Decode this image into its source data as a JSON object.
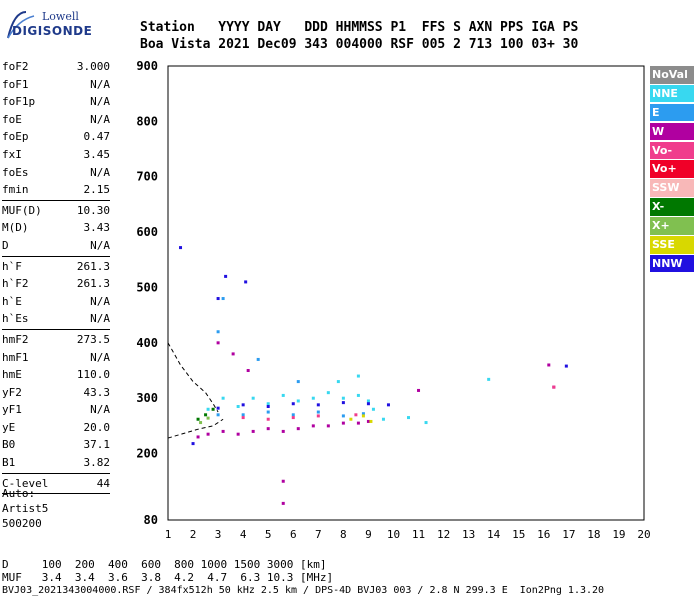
{
  "logo": {
    "top": "Lowell",
    "bottom": "DIGISONDE"
  },
  "header": {
    "row1": "Station   YYYY DAY   DDD HHMMSS P1  FFS S AXN PPS IGA PS",
    "row2": "Boa Vista 2021 Dec09 343 004000 RSF 005 2 713 100 03+ 30"
  },
  "params": [
    {
      "name": "foF2",
      "value": "3.000"
    },
    {
      "name": "foF1",
      "value": "N/A"
    },
    {
      "name": "foF1p",
      "value": "N/A"
    },
    {
      "name": "foE",
      "value": "N/A"
    },
    {
      "name": "foEp",
      "value": "0.47"
    },
    {
      "name": "fxI",
      "value": "3.45"
    },
    {
      "name": "foEs",
      "value": "N/A"
    },
    {
      "name": "fmin",
      "value": "2.15"
    },
    {
      "sep": true
    },
    {
      "name": "MUF(D)",
      "value": "10.30"
    },
    {
      "name": "M(D)",
      "value": "3.43"
    },
    {
      "name": "D",
      "value": "N/A"
    },
    {
      "sep": true
    },
    {
      "name": "h`F",
      "value": "261.3"
    },
    {
      "name": "h`F2",
      "value": "261.3"
    },
    {
      "name": "h`E",
      "value": "N/A"
    },
    {
      "name": "h`Es",
      "value": "N/A"
    },
    {
      "sep": true
    },
    {
      "name": "hmF2",
      "value": "273.5"
    },
    {
      "name": "hmF1",
      "value": "N/A"
    },
    {
      "name": "hmE",
      "value": "110.0"
    },
    {
      "name": "yF2",
      "value": "43.3"
    },
    {
      "name": "yF1",
      "value": "N/A"
    },
    {
      "name": "yE",
      "value": "20.0"
    },
    {
      "name": "B0",
      "value": "37.1"
    },
    {
      "name": "B1",
      "value": "3.82"
    },
    {
      "sep": true
    },
    {
      "name": "C-level",
      "value": "44"
    },
    {
      "sep": true
    }
  ],
  "auto": {
    "line1": "Auto:",
    "line2": "Artist5",
    "line3": "500200"
  },
  "legend": [
    {
      "label": "NoVal",
      "color": "#8c8c8c"
    },
    {
      "label": "NNE",
      "color": "#38d8f0"
    },
    {
      "label": "E",
      "color": "#2c9cf0"
    },
    {
      "label": "W",
      "color": "#b000a0"
    },
    {
      "label": "Vo-",
      "color": "#f03c8c"
    },
    {
      "label": "Vo+",
      "color": "#f00028"
    },
    {
      "label": "SSW",
      "color": "#f8b8b8"
    },
    {
      "label": "X-",
      "color": "#007800"
    },
    {
      "label": "X+",
      "color": "#80c050"
    },
    {
      "label": "SSE",
      "color": "#d8d800"
    },
    {
      "label": "NNW",
      "color": "#2010e0"
    }
  ],
  "footer": {
    "d_line": "D     100  200  400  600  800 1000 1500 3000 [km]",
    "muf_line": "MUF   3.4  3.4  3.6  3.8  4.2  4.7  6.3 10.3 [MHz]",
    "file_line": "BVJ03_2021343004000.RSF / 384fx512h 50 kHz 2.5 km / DPS-4D BVJ03 003 / 2.8 N 299.3 E  Ion2Png 1.3.20"
  },
  "chart_data": {
    "type": "scatter",
    "xlabel": "",
    "ylabel": "",
    "x_ticks": [
      "1",
      "2",
      "3",
      "4",
      "5",
      "6",
      "7",
      "8",
      "9",
      "10",
      "11",
      "12",
      "13",
      "14",
      "15",
      "16",
      "17",
      "18",
      "19",
      "20"
    ],
    "y_ticks": [
      "80",
      "200",
      "300",
      "400",
      "500",
      "600",
      "700",
      "800",
      "900"
    ],
    "xlim": [
      1,
      20
    ],
    "ylim": [
      80,
      900
    ],
    "grid": true,
    "legend_position": "right",
    "series": [
      {
        "name": "NNE",
        "color": "#38d8f0",
        "points": [
          [
            2.6,
            280
          ],
          [
            3.2,
            300
          ],
          [
            3.8,
            285
          ],
          [
            4.4,
            300
          ],
          [
            5.0,
            290
          ],
          [
            5.6,
            305
          ],
          [
            6.2,
            295
          ],
          [
            6.8,
            300
          ],
          [
            7.4,
            310
          ],
          [
            8.0,
            300
          ],
          [
            8.6,
            305
          ],
          [
            9.0,
            295
          ],
          [
            7.8,
            330
          ],
          [
            8.6,
            340
          ],
          [
            9.2,
            280
          ],
          [
            9.6,
            262
          ],
          [
            10.6,
            265
          ],
          [
            11.3,
            256
          ],
          [
            13.8,
            334
          ]
        ]
      },
      {
        "name": "E",
        "color": "#2c9cf0",
        "points": [
          [
            3.0,
            270
          ],
          [
            4.0,
            270
          ],
          [
            5.0,
            275
          ],
          [
            6.0,
            270
          ],
          [
            7.0,
            275
          ],
          [
            8.0,
            268
          ],
          [
            8.8,
            272
          ],
          [
            3.0,
            420
          ],
          [
            3.2,
            480
          ],
          [
            4.6,
            370
          ],
          [
            6.2,
            330
          ]
        ]
      },
      {
        "name": "W",
        "color": "#b000a0",
        "points": [
          [
            2.2,
            230
          ],
          [
            2.6,
            235
          ],
          [
            3.2,
            240
          ],
          [
            3.8,
            235
          ],
          [
            4.4,
            240
          ],
          [
            5.0,
            245
          ],
          [
            5.6,
            240
          ],
          [
            6.2,
            245
          ],
          [
            6.8,
            250
          ],
          [
            7.4,
            250
          ],
          [
            8.0,
            255
          ],
          [
            8.6,
            255
          ],
          [
            9.0,
            258
          ],
          [
            3.0,
            400
          ],
          [
            3.6,
            380
          ],
          [
            4.2,
            350
          ],
          [
            11.0,
            314
          ],
          [
            16.2,
            360
          ],
          [
            16.4,
            320
          ],
          [
            5.6,
            150
          ],
          [
            5.6,
            110
          ]
        ]
      },
      {
        "name": "Vo-",
        "color": "#f03c8c",
        "points": [
          [
            4.0,
            265
          ],
          [
            5.0,
            262
          ],
          [
            6.0,
            265
          ],
          [
            7.0,
            268
          ],
          [
            8.5,
            270
          ],
          [
            16.4,
            320
          ]
        ]
      },
      {
        "name": "X-",
        "color": "#007800",
        "points": [
          [
            2.2,
            262
          ],
          [
            2.5,
            270
          ],
          [
            2.8,
            280
          ]
        ]
      },
      {
        "name": "X+",
        "color": "#80c050",
        "points": [
          [
            2.3,
            256
          ],
          [
            2.6,
            264
          ]
        ]
      },
      {
        "name": "SSE",
        "color": "#d8d800",
        "points": [
          [
            8.3,
            262
          ],
          [
            8.8,
            268
          ],
          [
            9.1,
            258
          ]
        ]
      },
      {
        "name": "NNW",
        "color": "#2010e0",
        "points": [
          [
            1.5,
            572
          ],
          [
            2.0,
            218
          ],
          [
            3.0,
            282
          ],
          [
            4.0,
            288
          ],
          [
            5.0,
            285
          ],
          [
            6.0,
            290
          ],
          [
            7.0,
            288
          ],
          [
            8.0,
            292
          ],
          [
            9.0,
            290
          ],
          [
            9.8,
            288
          ],
          [
            3.0,
            480
          ],
          [
            3.3,
            520
          ],
          [
            4.1,
            510
          ],
          [
            16.9,
            358
          ]
        ]
      }
    ],
    "traces": [
      {
        "name": "model-profile",
        "style": "dashed",
        "points": [
          [
            1.0,
            400
          ],
          [
            1.5,
            360
          ],
          [
            2.0,
            330
          ],
          [
            2.5,
            310
          ],
          [
            2.8,
            290
          ],
          [
            3.0,
            275
          ]
        ]
      },
      {
        "name": "model-profile-low",
        "style": "dashed",
        "points": [
          [
            1.0,
            228
          ],
          [
            1.6,
            236
          ],
          [
            2.2,
            244
          ],
          [
            2.8,
            250
          ],
          [
            3.2,
            262
          ]
        ]
      }
    ]
  }
}
